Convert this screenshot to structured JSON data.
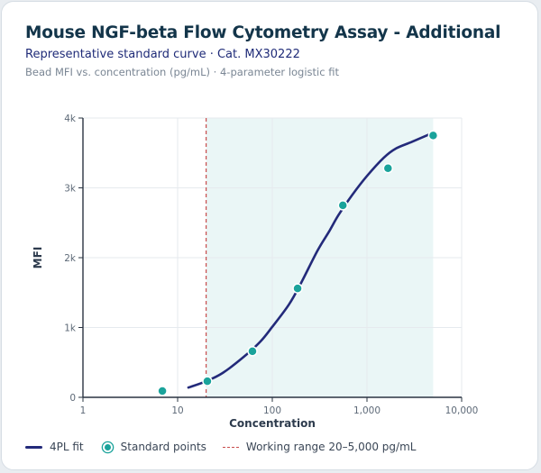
{
  "header": {
    "title": "Mouse NGF-beta Flow Cytometry Assay - Additional",
    "subtitle": "Representative standard curve · Cat. MX30222",
    "caption": "Bead MFI vs. concentration (pg/mL) · 4-parameter logistic fit"
  },
  "legend": {
    "fit_label": "4PL fit",
    "points_label": "Standard points",
    "range_label": "Working range 20–5,000 pg/mL"
  },
  "colors": {
    "fit_line": "#232a7a",
    "points": "#1aa39b",
    "range_marker": "#c84c4c",
    "range_fill": "#eaf6f6"
  },
  "chart_data": {
    "type": "scatter",
    "xlabel": "Concentration",
    "ylabel": "MFI",
    "x_scale": "log",
    "xlim": [
      1,
      10000
    ],
    "ylim": [
      0,
      4000
    ],
    "x_ticks": [
      1,
      10,
      100,
      1000,
      10000
    ],
    "x_tick_labels": [
      "1",
      "10",
      "100",
      "1,000",
      "10,000"
    ],
    "y_ticks": [
      0,
      1000,
      2000,
      3000,
      4000
    ],
    "y_tick_labels": [
      "0",
      "1k",
      "2k",
      "3k",
      "4k"
    ],
    "grid": true,
    "legend_position": "bottom",
    "working_range": [
      20,
      5000
    ],
    "series": [
      {
        "name": "Standard points",
        "type": "scatter",
        "x": [
          6.9,
          20.6,
          61.7,
          185,
          556,
          1667,
          5000
        ],
        "y": [
          90,
          230,
          660,
          1560,
          2750,
          3280,
          3750
        ]
      },
      {
        "name": "4PL fit",
        "type": "line",
        "x": [
          13,
          20,
          30,
          50,
          75,
          100,
          150,
          200,
          300,
          400,
          500,
          700,
          1000,
          1500,
          2000,
          3000,
          5000
        ],
        "y": [
          140,
          230,
          350,
          580,
          800,
          1010,
          1330,
          1630,
          2100,
          2380,
          2610,
          2900,
          3170,
          3430,
          3560,
          3660,
          3790
        ]
      }
    ]
  }
}
